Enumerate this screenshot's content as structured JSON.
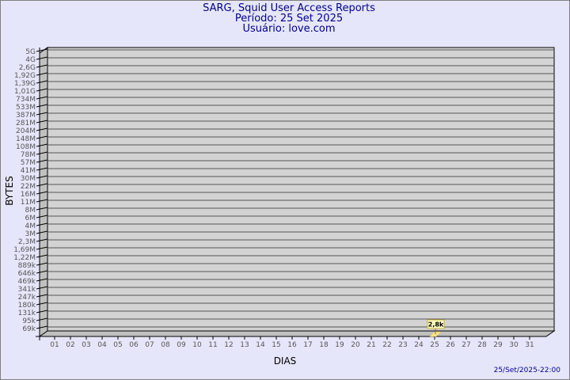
{
  "header": {
    "title": "SARG, Squid User Access Reports",
    "period": "Período: 25 Set 2025",
    "user": "Usuário: love.com"
  },
  "footer": {
    "timestamp": "25/Set/2025-22:00"
  },
  "colors": {
    "background": "#e6e6fa",
    "plot": "#d3d3d3",
    "bar": "#ffe680",
    "title": "#00008b"
  },
  "chart_data": {
    "type": "bar",
    "xlabel": "DIAS",
    "ylabel": "BYTES",
    "yscale": "log",
    "grid": true,
    "y_ticks": [
      "5G",
      "4G",
      "2,6G",
      "1,92G",
      "1,39G",
      "1,01G",
      "734M",
      "533M",
      "387M",
      "281M",
      "204M",
      "148M",
      "108M",
      "78M",
      "57M",
      "41M",
      "30M",
      "22M",
      "16M",
      "11M",
      "8M",
      "6M",
      "4M",
      "3M",
      "2,3M",
      "1,69M",
      "1,22M",
      "889k",
      "646k",
      "469k",
      "341k",
      "247k",
      "180k",
      "131k",
      "95k",
      "69k"
    ],
    "categories": [
      "01",
      "02",
      "03",
      "04",
      "05",
      "06",
      "07",
      "08",
      "09",
      "10",
      "11",
      "12",
      "13",
      "14",
      "15",
      "16",
      "17",
      "18",
      "19",
      "20",
      "21",
      "22",
      "23",
      "24",
      "25",
      "26",
      "27",
      "28",
      "29",
      "30",
      "31"
    ],
    "bars": [
      {
        "day": "25",
        "value": 2800,
        "label": "2,8k"
      }
    ]
  }
}
